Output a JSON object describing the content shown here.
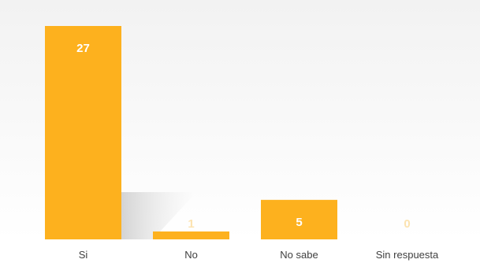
{
  "chart_data": {
    "type": "bar",
    "categories": [
      "Si",
      "No",
      "No sabe",
      "Sin respuesta"
    ],
    "values": [
      27,
      1,
      5,
      0
    ],
    "data_labels": [
      "27",
      "1",
      "5",
      "0"
    ],
    "title": "",
    "xlabel": "",
    "ylabel": "",
    "ylim": [
      0,
      27
    ],
    "grid": false,
    "legend": "none",
    "colors": {
      "bar": "#FDB11E",
      "data_label": "#FFFFFF",
      "data_label_faint": "#FCE3B0",
      "category_label": "#404040",
      "background_top": "#F2F2F2",
      "background_bottom": "#FFFFFF"
    }
  }
}
